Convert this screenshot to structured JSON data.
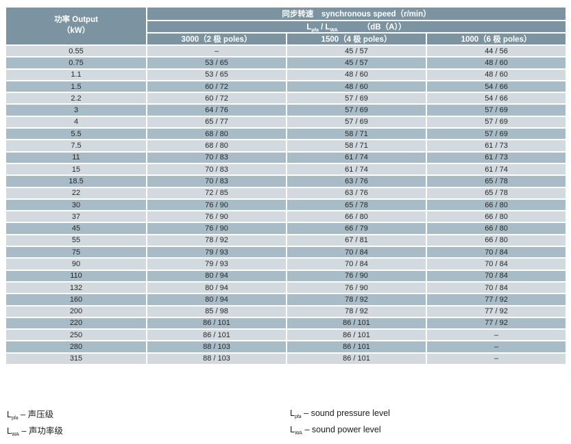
{
  "colors": {
    "header_bg": "#7C94A1",
    "row_dark": "#A8BCC7",
    "row_light": "#D3DADF",
    "header_text": "#FFFFFF",
    "data_text": "#262626"
  },
  "table": {
    "power_header": [
      "功率 Output",
      "（kW）"
    ],
    "speed_header": "同步转速　synchronous speed（r/min）",
    "level_header": {
      "sym1": "L",
      "sub1": "pfa",
      "mid": " / L",
      "sub2": "WA",
      "unit": "（dB（A））"
    },
    "col_headers": [
      "3000（2 极 poles）",
      "1500（4 极 poles）",
      "1000（6 极 poles）"
    ],
    "rows": [
      [
        "0.55",
        "–",
        "45 / 57",
        "44 / 56"
      ],
      [
        "0.75",
        "53 / 65",
        "45 / 57",
        "48 / 60"
      ],
      [
        "1.1",
        "53 / 65",
        "48 / 60",
        "48 / 60"
      ],
      [
        "1.5",
        "60 / 72",
        "48 / 60",
        "54 / 66"
      ],
      [
        "2.2",
        "60 / 72",
        "57 / 69",
        "54 / 66"
      ],
      [
        "3",
        "64 / 76",
        "57 / 69",
        "57 / 69"
      ],
      [
        "4",
        "65 / 77",
        "57 / 69",
        "57 / 69"
      ],
      [
        "5.5",
        "68 / 80",
        "58 / 71",
        "57 / 69"
      ],
      [
        "7.5",
        "68 / 80",
        "58 / 71",
        "61 / 73"
      ],
      [
        "11",
        "70 / 83",
        "61 / 74",
        "61 / 73"
      ],
      [
        "15",
        "70 / 83",
        "61 / 74",
        "61 / 74"
      ],
      [
        "18.5",
        "70 / 83",
        "63 / 76",
        "65 / 78"
      ],
      [
        "22",
        "72 / 85",
        "63 / 76",
        "65 / 78"
      ],
      [
        "30",
        "76 / 90",
        "65 / 78",
        "66 / 80"
      ],
      [
        "37",
        "76 / 90",
        "66 / 80",
        "66 / 80"
      ],
      [
        "45",
        "76 / 90",
        "66 / 79",
        "66 / 80"
      ],
      [
        "55",
        "78 / 92",
        "67 / 81",
        "66 / 80"
      ],
      [
        "75",
        "79 / 93",
        "70 / 84",
        "70 / 84"
      ],
      [
        "90",
        "79 / 93",
        "70 / 84",
        "70 / 84"
      ],
      [
        "110",
        "80 / 94",
        "76 / 90",
        "70 / 84"
      ],
      [
        "132",
        "80 / 94",
        "76 / 90",
        "70 / 84"
      ],
      [
        "160",
        "80 / 94",
        "78 / 92",
        "77 / 92"
      ],
      [
        "200",
        "85 / 98",
        "78 / 92",
        "77 / 92"
      ],
      [
        "220",
        "86 / 101",
        "86 / 101",
        "77 / 92"
      ],
      [
        "250",
        "86 / 101",
        "86 / 101",
        "–"
      ],
      [
        "280",
        "88 / 103",
        "86 / 101",
        "–"
      ],
      [
        "315",
        "88 / 103",
        "86 / 101",
        "–"
      ]
    ]
  },
  "legend": {
    "items": [
      {
        "sym": "L",
        "sub": "pfa",
        "text": " – 声压级"
      },
      {
        "sym": "L",
        "sub": "WA",
        "text": " – 声功率级"
      },
      {
        "sym": "L",
        "sub": "pfa",
        "text": " – sound pressure level"
      },
      {
        "sym": "L",
        "sub": "WA",
        "text": " – sound power level"
      }
    ]
  }
}
